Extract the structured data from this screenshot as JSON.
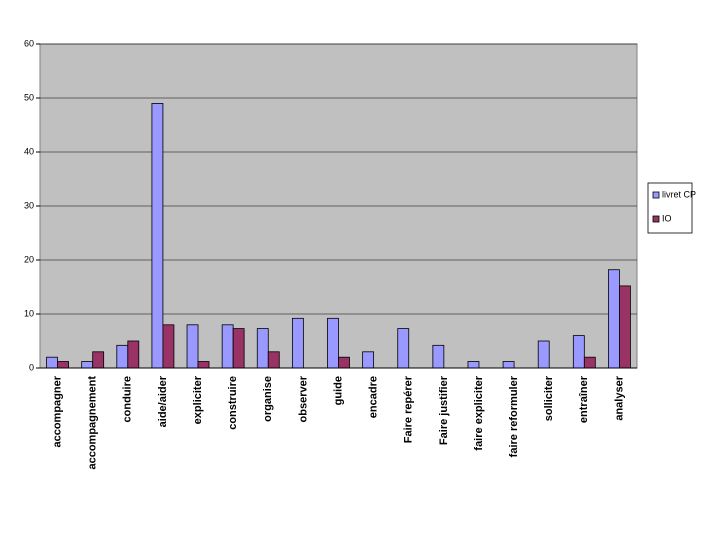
{
  "chart_data": {
    "type": "bar",
    "categories": [
      "accompagner",
      "accompagnement",
      "conduire",
      "aide/aider",
      "expliciter",
      "construire",
      "organise",
      "observer",
      "guide",
      "encadre",
      "Faire repérer",
      "Faire justifier",
      "faire expliciter",
      "faire reformuler",
      "solliciter",
      "entraîner",
      "analyser"
    ],
    "series": [
      {
        "name": "livret CP",
        "color": "#9999ff",
        "values": [
          2,
          1.2,
          4.2,
          49,
          8,
          8,
          7.3,
          9.2,
          9.2,
          3,
          7.3,
          4.2,
          1.2,
          1.2,
          5,
          6,
          18.2
        ]
      },
      {
        "name": "IO",
        "color": "#993366",
        "values": [
          1.2,
          3,
          5,
          8,
          1.2,
          7.3,
          3,
          0,
          2,
          0,
          0,
          0,
          0,
          0,
          0,
          2,
          15.2
        ]
      }
    ],
    "ylim": [
      0,
      60
    ],
    "yticks": [
      0,
      10,
      20,
      30,
      40,
      50,
      60
    ],
    "grid": true,
    "legend": "right"
  }
}
